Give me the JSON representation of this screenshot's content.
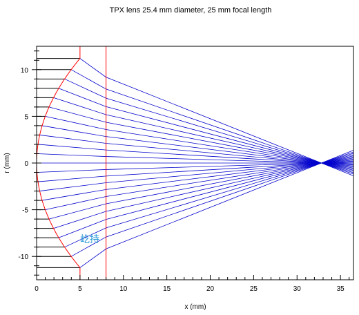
{
  "chart_data": {
    "type": "line",
    "title": "TPX lens 25.4 mm diameter, 25 mm focal length",
    "xlabel": "x (mm)",
    "ylabel": "r (mm)",
    "xlim": [
      0,
      36.5
    ],
    "ylim": [
      -12.5,
      12.5
    ],
    "x_ticks": [
      0,
      5,
      10,
      15,
      20,
      25,
      30,
      35
    ],
    "y_ticks": [
      -10,
      -5,
      0,
      5,
      10
    ],
    "x_minor_step": 1,
    "y_minor_step": 1,
    "grid": false,
    "lens": {
      "curved_surface_vertex_x": 0,
      "curved_surface_edge_x": 5,
      "edge_aperture_height": 11.2,
      "flat_surface_x": 8,
      "flat_surface_y_range": [
        -12.5,
        12.5
      ],
      "edge_line_x": 5,
      "edge_line_y_range": [
        11.2,
        12.5
      ],
      "color": "#ff0000"
    },
    "rays": {
      "heights": [
        -11.2,
        -10,
        -9,
        -8,
        -7,
        -6,
        -5,
        -4,
        -3,
        -2,
        -1,
        0,
        1,
        2,
        3,
        4,
        5,
        6,
        7,
        8,
        9,
        10,
        11.2
      ],
      "focus_x": 32.8,
      "incident_color": "#000000",
      "refracted_color": "#0000cc"
    },
    "annotation": "屹持"
  }
}
